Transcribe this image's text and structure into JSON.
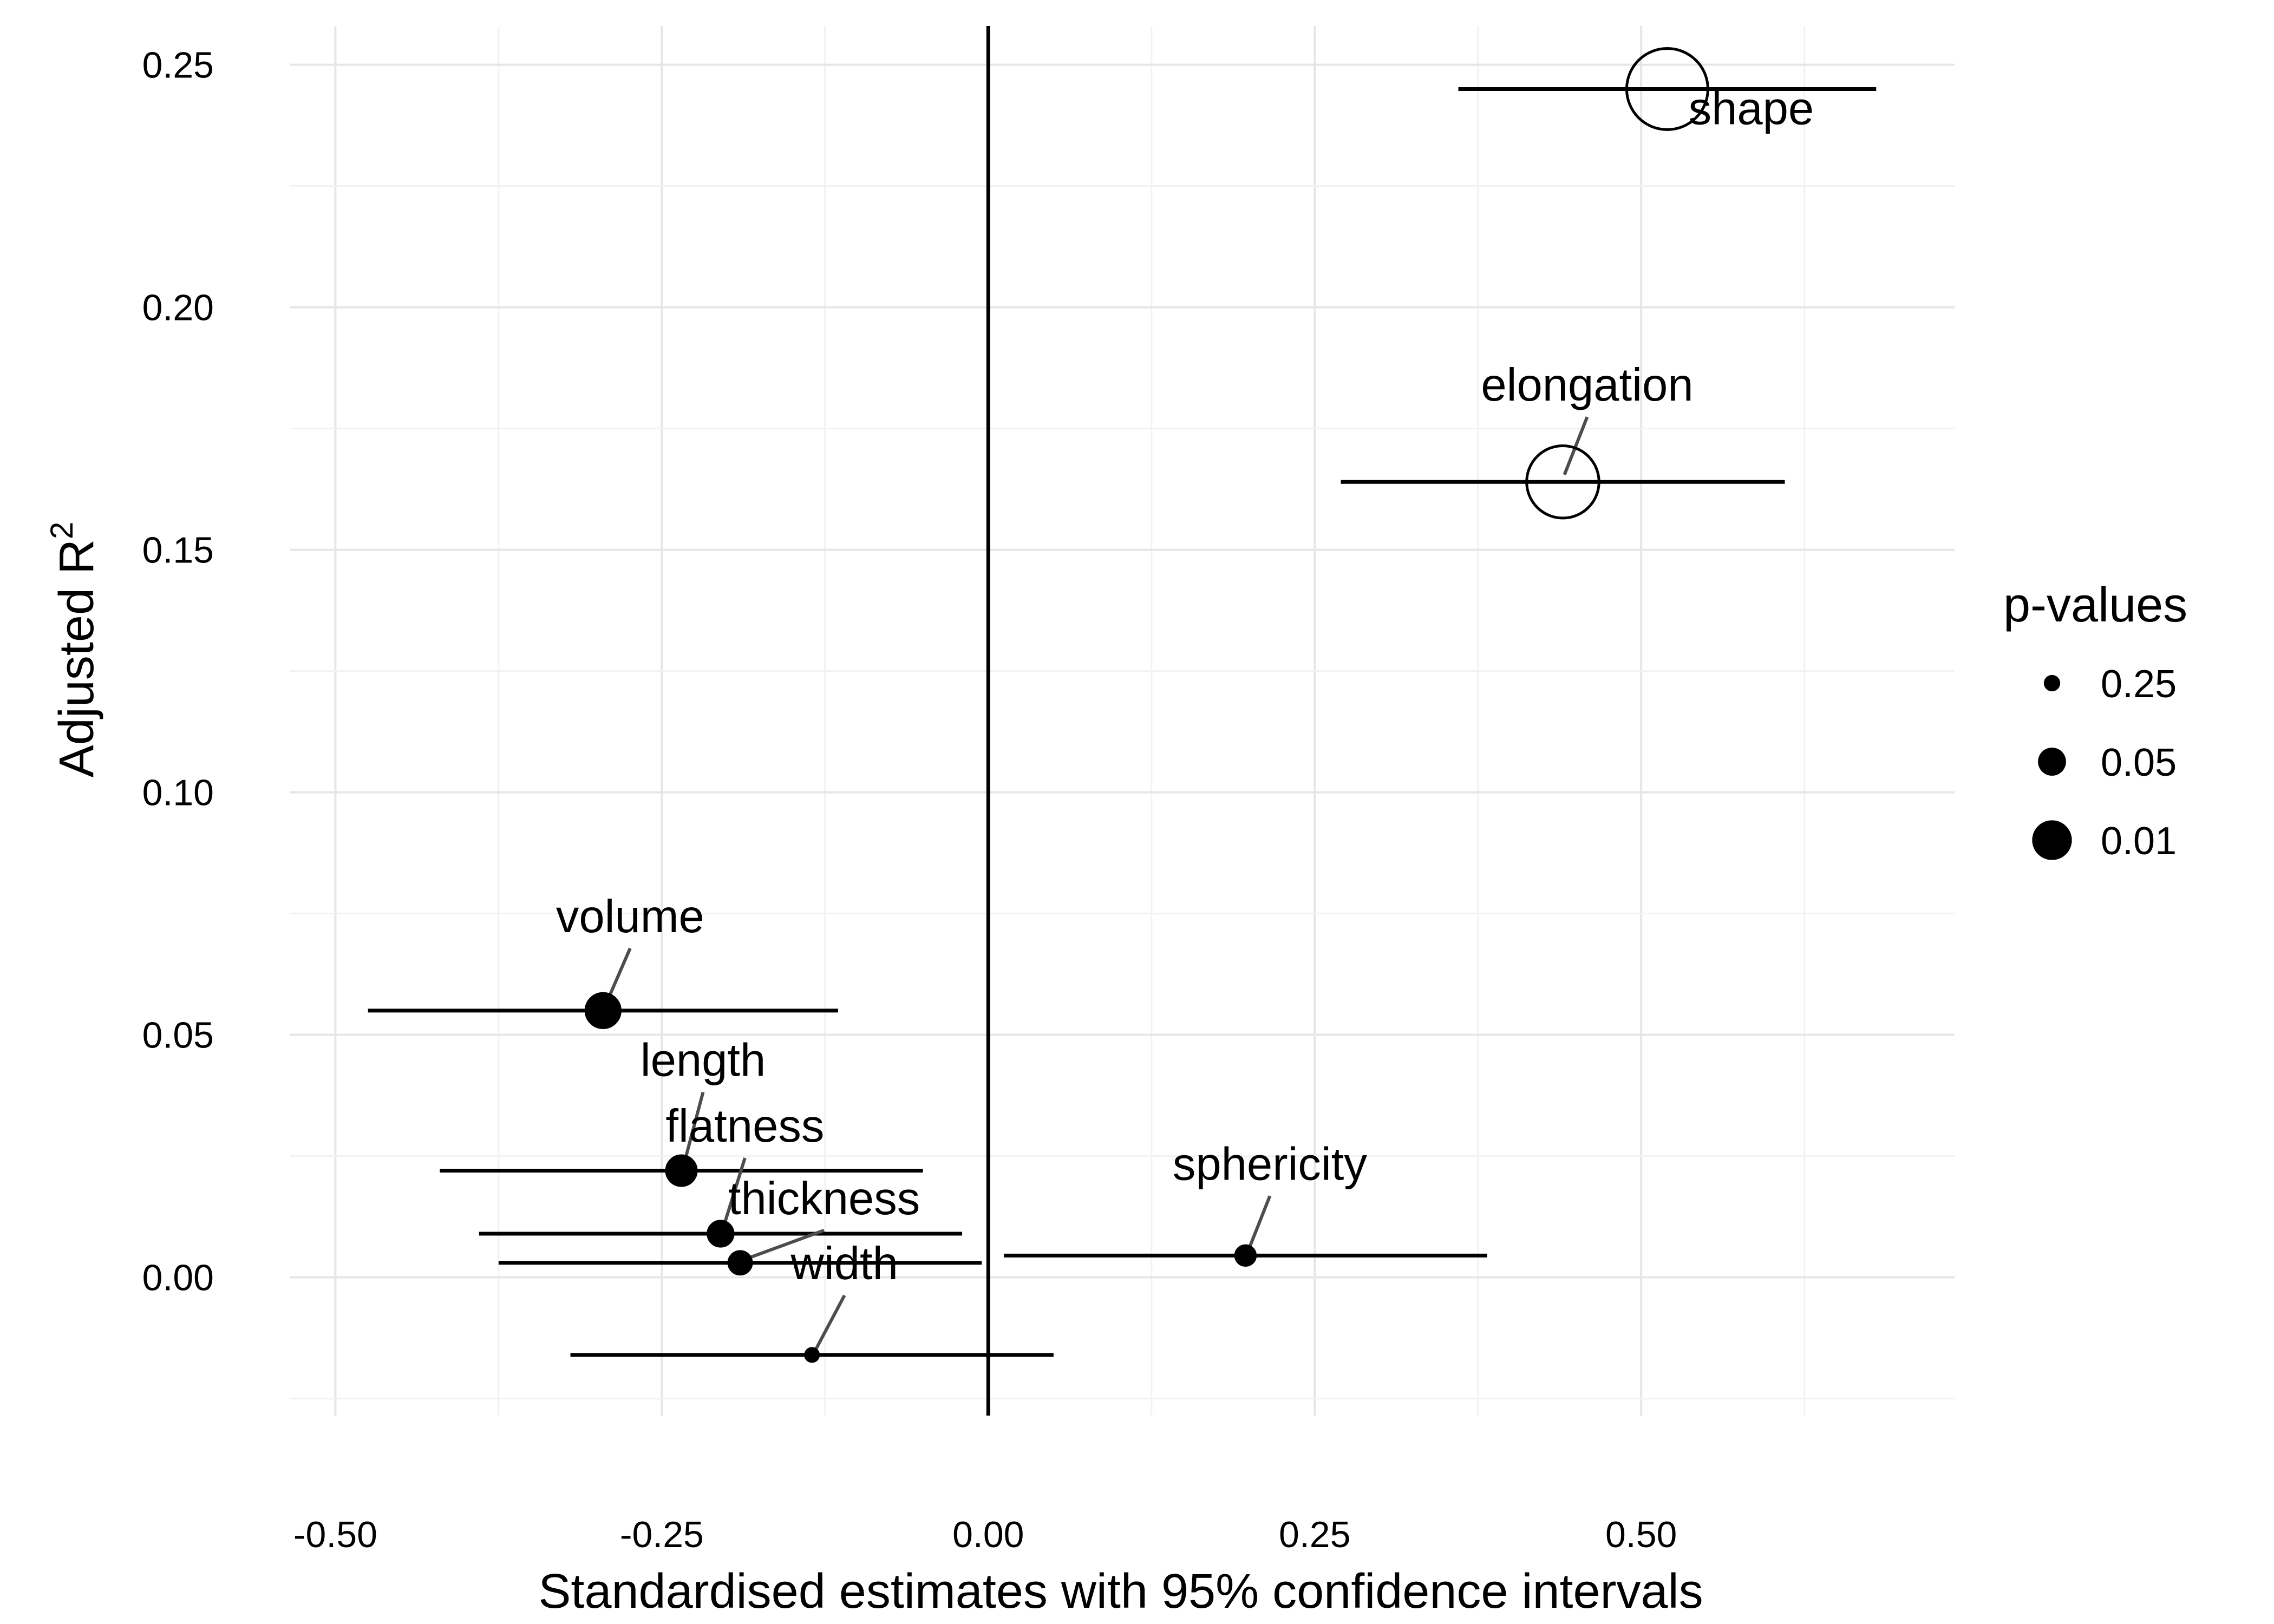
{
  "chart_data": {
    "type": "scatter",
    "title": "",
    "xlabel": "Standardised estimates with 95% confidence intervals",
    "ylabel": "Adjusted R",
    "ylabel_superscript": "2",
    "xlim": [
      -0.535,
      0.74
    ],
    "ylim": [
      -0.0285,
      0.258
    ],
    "x_ticks": [
      -0.5,
      -0.25,
      0,
      0.25,
      0.5
    ],
    "x_tick_labels": [
      "-0.50",
      "-0.25",
      "0.00",
      "0.25",
      "0.50"
    ],
    "y_ticks": [
      0,
      0.05,
      0.1,
      0.15,
      0.2,
      0.25
    ],
    "y_tick_labels": [
      "0.00",
      "0.05",
      "0.10",
      "0.15",
      "0.20",
      "0.25"
    ],
    "grid": true,
    "reference_line_x": 0,
    "points": [
      {
        "label": "shape",
        "x": 0.52,
        "y": 0.245,
        "ci": [
          0.36,
          0.68
        ],
        "p": 0.0001,
        "hollow": true
      },
      {
        "label": "elongation",
        "x": 0.44,
        "y": 0.164,
        "ci": [
          0.27,
          0.61
        ],
        "p": 0.003,
        "hollow": true
      },
      {
        "label": "volume",
        "x": -0.295,
        "y": 0.055,
        "ci": [
          -0.475,
          -0.115
        ],
        "p": 0.05,
        "hollow": false
      },
      {
        "label": "length",
        "x": -0.235,
        "y": 0.022,
        "ci": [
          -0.42,
          -0.05
        ],
        "p": 0.07,
        "hollow": false
      },
      {
        "label": "flatness",
        "x": -0.205,
        "y": 0.009,
        "ci": [
          -0.39,
          -0.02
        ],
        "p": 0.1,
        "hollow": false
      },
      {
        "label": "thickness",
        "x": -0.19,
        "y": 0.003,
        "ci": [
          -0.375,
          -0.005
        ],
        "p": 0.12,
        "hollow": false
      },
      {
        "label": "sphericity",
        "x": 0.197,
        "y": 0.0045,
        "ci": [
          0.012,
          0.382
        ],
        "p": 0.15,
        "hollow": false
      },
      {
        "label": "width",
        "x": -0.135,
        "y": -0.016,
        "ci": [
          -0.32,
          0.05
        ],
        "p": 0.25,
        "hollow": false
      }
    ],
    "legend": {
      "title": "p-values",
      "placement": "right",
      "entries": [
        {
          "label": "0.25",
          "p": 0.25
        },
        {
          "label": "0.05",
          "p": 0.05
        },
        {
          "label": "0.01",
          "p": 0.01
        }
      ]
    }
  }
}
